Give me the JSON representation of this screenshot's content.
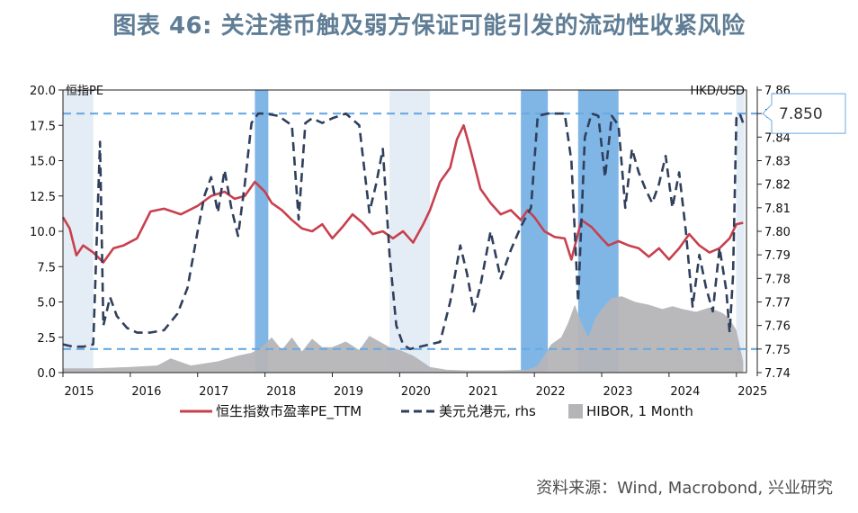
{
  "title": "图表 46: 关注港币触及弱方保证可能引发的流动性收紧风险",
  "source": "资料来源：Wind, Macrobond, 兴业研究",
  "chart_data": {
    "type": "line",
    "left_axis_label": "恒指PE",
    "right_axis_label": "HKD/USD",
    "callout": "7.850",
    "x_ticks": [
      "2015",
      "2016",
      "2017",
      "2018",
      "2019",
      "2020",
      "2021",
      "2022",
      "2023",
      "2024",
      "2025"
    ],
    "xlim": [
      2015.0,
      2025.15
    ],
    "y_left_ticks": [
      "0.0",
      "2.5",
      "5.0",
      "7.5",
      "10.0",
      "12.5",
      "15.0",
      "17.5",
      "20.0"
    ],
    "ylim_left": [
      0,
      20
    ],
    "y_right_ticks": [
      "7.74",
      "7.75",
      "7.76",
      "7.77",
      "7.78",
      "7.79",
      "7.80",
      "7.81",
      "7.82",
      "7.83",
      "7.84",
      "7.85",
      "7.86"
    ],
    "ylim_right": [
      7.74,
      7.86
    ],
    "reference_lines_hkd": [
      7.85,
      7.75
    ],
    "legend": [
      "恒生指数市盈率PE_TTM",
      "美元兑港元, rhs",
      "HIBOR, 1 Month"
    ],
    "colors": {
      "pe": "#c8404e",
      "hkd": "#2f3f5c",
      "hibor": "#b5b5b8",
      "strong_band": "#e4ecf5",
      "weak_band": "#7fb6e6",
      "ref_line": "#6aa9e2",
      "title": "#5f7d95"
    },
    "shaded_periods_strong_side": [
      [
        2015.0,
        2015.45
      ],
      [
        2019.85,
        2020.45
      ],
      [
        2025.0,
        2025.12
      ]
    ],
    "shaded_periods_weak_side": [
      [
        2017.85,
        2018.05
      ],
      [
        2021.8,
        2022.2
      ],
      [
        2022.65,
        2023.25
      ]
    ],
    "series": [
      {
        "name": "恒生指数市盈率PE_TTM",
        "axis": "left",
        "style": "solid",
        "x": [
          2015.0,
          2015.1,
          2015.2,
          2015.3,
          2015.45,
          2015.6,
          2015.75,
          2015.9,
          2016.1,
          2016.3,
          2016.5,
          2016.75,
          2017.0,
          2017.2,
          2017.4,
          2017.55,
          2017.7,
          2017.85,
          2018.0,
          2018.1,
          2018.25,
          2018.4,
          2018.55,
          2018.7,
          2018.85,
          2019.0,
          2019.15,
          2019.3,
          2019.45,
          2019.6,
          2019.75,
          2019.9,
          2020.05,
          2020.2,
          2020.35,
          2020.45,
          2020.6,
          2020.75,
          2020.85,
          2020.95,
          2021.05,
          2021.2,
          2021.35,
          2021.5,
          2021.65,
          2021.8,
          2021.9,
          2022.0,
          2022.15,
          2022.3,
          2022.45,
          2022.55,
          2022.7,
          2022.85,
          2023.0,
          2023.1,
          2023.25,
          2023.4,
          2023.55,
          2023.7,
          2023.85,
          2024.0,
          2024.15,
          2024.3,
          2024.45,
          2024.6,
          2024.75,
          2024.9,
          2025.0,
          2025.1
        ],
        "y": [
          11.0,
          10.2,
          8.3,
          9.0,
          8.5,
          7.8,
          8.8,
          9.0,
          9.5,
          11.4,
          11.6,
          11.2,
          11.8,
          12.5,
          12.8,
          12.3,
          12.5,
          13.5,
          12.8,
          12.0,
          11.5,
          10.8,
          10.2,
          10.0,
          10.5,
          9.5,
          10.3,
          11.2,
          10.6,
          9.8,
          10.0,
          9.5,
          10.0,
          9.2,
          10.5,
          11.5,
          13.5,
          14.5,
          16.5,
          17.5,
          15.8,
          13.0,
          12.0,
          11.2,
          11.5,
          10.8,
          11.5,
          11.0,
          10.0,
          9.6,
          9.5,
          8.0,
          10.8,
          10.3,
          9.5,
          9.0,
          9.3,
          9.0,
          8.8,
          8.2,
          8.8,
          8.0,
          8.8,
          9.8,
          9.0,
          8.5,
          8.8,
          9.5,
          10.5,
          10.6
        ]
      },
      {
        "name": "美元兑港元, rhs",
        "axis": "right",
        "style": "dashed",
        "x": [
          2015.0,
          2015.15,
          2015.3,
          2015.45,
          2015.55,
          2015.6,
          2015.7,
          2015.8,
          2015.95,
          2016.1,
          2016.3,
          2016.5,
          2016.7,
          2016.85,
          2017.0,
          2017.1,
          2017.2,
          2017.3,
          2017.4,
          2017.5,
          2017.6,
          2017.7,
          2017.8,
          2017.9,
          2018.0,
          2018.2,
          2018.4,
          2018.5,
          2018.6,
          2018.7,
          2018.85,
          2019.0,
          2019.2,
          2019.4,
          2019.55,
          2019.65,
          2019.75,
          2019.85,
          2019.95,
          2020.05,
          2020.15,
          2020.3,
          2020.45,
          2020.6,
          2020.75,
          2020.9,
          2021.0,
          2021.1,
          2021.2,
          2021.35,
          2021.5,
          2021.65,
          2021.8,
          2021.95,
          2022.05,
          2022.2,
          2022.35,
          2022.45,
          2022.55,
          2022.65,
          2022.75,
          2022.85,
          2022.95,
          2023.05,
          2023.15,
          2023.25,
          2023.35,
          2023.45,
          2023.55,
          2023.65,
          2023.75,
          2023.85,
          2023.95,
          2024.05,
          2024.15,
          2024.25,
          2024.35,
          2024.45,
          2024.55,
          2024.65,
          2024.75,
          2024.85,
          2024.9,
          2024.95,
          2025.0,
          2025.05,
          2025.1
        ],
        "y": [
          7.752,
          7.751,
          7.751,
          7.752,
          7.838,
          7.76,
          7.772,
          7.764,
          7.759,
          7.757,
          7.757,
          7.758,
          7.765,
          7.776,
          7.8,
          7.815,
          7.823,
          7.808,
          7.826,
          7.81,
          7.798,
          7.82,
          7.846,
          7.85,
          7.85,
          7.849,
          7.845,
          7.805,
          7.846,
          7.848,
          7.846,
          7.848,
          7.85,
          7.845,
          7.808,
          7.82,
          7.835,
          7.79,
          7.76,
          7.752,
          7.75,
          7.751,
          7.752,
          7.753,
          7.77,
          7.794,
          7.782,
          7.766,
          7.777,
          7.8,
          7.78,
          7.792,
          7.802,
          7.81,
          7.849,
          7.85,
          7.85,
          7.85,
          7.83,
          7.77,
          7.84,
          7.85,
          7.849,
          7.823,
          7.849,
          7.845,
          7.81,
          7.835,
          7.825,
          7.818,
          7.812,
          7.82,
          7.832,
          7.81,
          7.825,
          7.8,
          7.768,
          7.79,
          7.776,
          7.766,
          7.793,
          7.775,
          7.757,
          7.781,
          7.848,
          7.85,
          7.846
        ]
      },
      {
        "name": "HIBOR, 1 Month",
        "axis": "left",
        "style": "area",
        "x": [
          2015.0,
          2015.45,
          2016.0,
          2016.4,
          2016.6,
          2016.9,
          2017.3,
          2017.6,
          2017.8,
          2017.95,
          2018.1,
          2018.25,
          2018.4,
          2018.55,
          2018.7,
          2018.85,
          2019.0,
          2019.2,
          2019.4,
          2019.55,
          2019.7,
          2019.85,
          2020.0,
          2020.2,
          2020.45,
          2020.7,
          2021.0,
          2021.5,
          2021.9,
          2022.05,
          2022.25,
          2022.4,
          2022.5,
          2022.6,
          2022.7,
          2022.8,
          2022.9,
          2023.0,
          2023.15,
          2023.3,
          2023.5,
          2023.7,
          2023.9,
          2024.05,
          2024.2,
          2024.4,
          2024.6,
          2024.8,
          2024.9,
          2025.0,
          2025.1
        ],
        "y": [
          0.3,
          0.3,
          0.4,
          0.5,
          1.0,
          0.5,
          0.8,
          1.2,
          1.4,
          1.8,
          2.5,
          1.6,
          2.5,
          1.5,
          2.4,
          1.8,
          1.8,
          2.2,
          1.6,
          2.6,
          2.2,
          1.8,
          1.6,
          1.2,
          0.4,
          0.2,
          0.15,
          0.15,
          0.2,
          0.5,
          2.0,
          2.5,
          3.5,
          4.8,
          3.5,
          2.5,
          3.8,
          4.5,
          5.3,
          5.4,
          5.0,
          4.8,
          4.5,
          4.7,
          4.5,
          4.3,
          4.6,
          4.2,
          3.8,
          3.0,
          0.8
        ]
      }
    ]
  }
}
